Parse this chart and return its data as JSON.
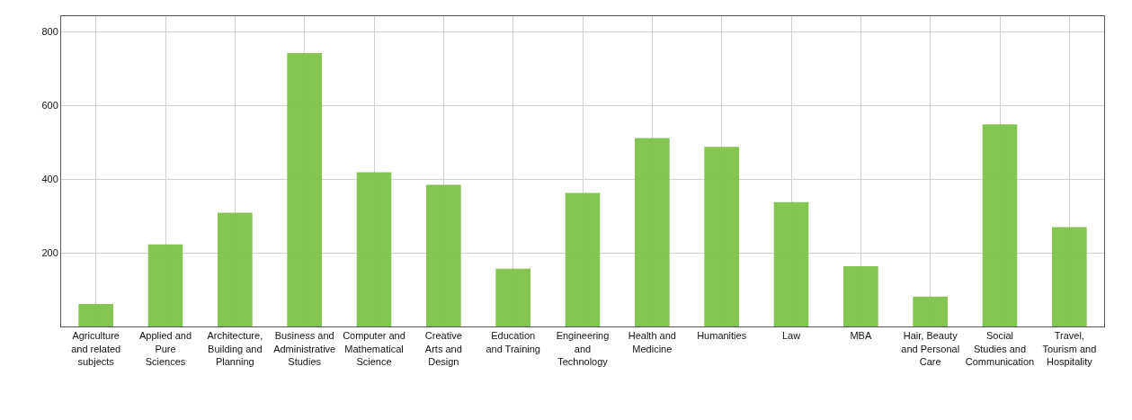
{
  "chart_data": {
    "type": "bar",
    "categories": [
      "Agriculture and related subjects",
      "Applied and Pure Sciences",
      "Architecture, Building and Planning",
      "Business and Administrative Studies",
      "Computer and Mathematical Science",
      "Creative Arts and Design",
      "Education and Training",
      "Engineering and Technology",
      "Health and Medicine",
      "Humanities",
      "Law",
      "MBA",
      "Hair, Beauty and Personal Care",
      "Social Studies and Communication",
      "Travel, Tourism and Hospitality"
    ],
    "values": [
      61,
      223,
      309,
      743,
      419,
      385,
      157,
      363,
      512,
      488,
      338,
      164,
      81,
      549,
      270
    ],
    "color": "#7dc24b",
    "ylim": [
      0,
      843
    ],
    "yticks": [
      200,
      400,
      600,
      800
    ],
    "grid": true,
    "legend": false
  }
}
